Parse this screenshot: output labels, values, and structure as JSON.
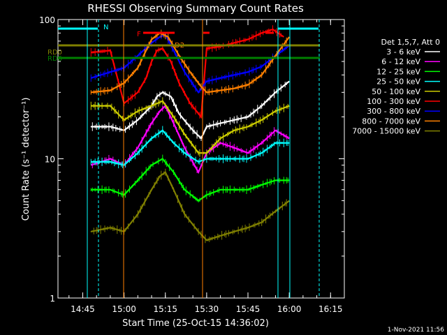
{
  "chart_data": {
    "type": "line",
    "title": "RHESSI Observing Summary Count Rates",
    "xlabel": "Start Time (25-Oct-15 14:36:02)",
    "ylabel": "Count Rate (s⁻¹ detector⁻¹)",
    "yscale": "log",
    "ylim": [
      1,
      100
    ],
    "xlim": [
      "14:36",
      "16:20"
    ],
    "x_ticks": [
      "14:45",
      "15:00",
      "15:15",
      "15:30",
      "15:45",
      "16:00",
      "16:15"
    ],
    "y_ticks": [
      "1",
      "10",
      "100"
    ],
    "legend_title": "Det 1,5,7, Att 0",
    "legend_position": "right",
    "footer_date": "1-Nov-2021 11:56",
    "flags": [
      {
        "label": "N",
        "color": "#00ffff"
      },
      {
        "label": "F",
        "color": "#ff0000"
      },
      {
        "label": "D2",
        "color": "#ff7f00"
      },
      {
        "label": "RD0",
        "color": "#808000"
      },
      {
        "label": "RD6",
        "color": "#008000"
      }
    ],
    "series": [
      {
        "name": "3 - 6 keV",
        "color": "#ffffff",
        "points": [
          [
            "14:48",
            17
          ],
          [
            "14:55",
            17
          ],
          [
            "15:00",
            16
          ],
          [
            "15:05",
            19
          ],
          [
            "15:10",
            24
          ],
          [
            "15:12",
            28
          ],
          [
            "15:14",
            30
          ],
          [
            "15:17",
            28
          ],
          [
            "15:20",
            21
          ],
          [
            "15:25",
            16
          ],
          [
            "15:28",
            14
          ],
          [
            "15:30",
            17
          ],
          [
            "15:35",
            18
          ],
          [
            "15:40",
            19
          ],
          [
            "15:45",
            20
          ],
          [
            "15:50",
            24
          ],
          [
            "15:55",
            30
          ],
          [
            "16:00",
            36
          ]
        ]
      },
      {
        "name": "6 - 12 keV",
        "color": "#ff00ff",
        "points": [
          [
            "14:48",
            9
          ],
          [
            "14:55",
            10
          ],
          [
            "15:00",
            9
          ],
          [
            "15:05",
            12
          ],
          [
            "15:10",
            18
          ],
          [
            "15:13",
            22
          ],
          [
            "15:15",
            24
          ],
          [
            "15:18",
            18
          ],
          [
            "15:22",
            12
          ],
          [
            "15:27",
            8
          ],
          [
            "15:30",
            11
          ],
          [
            "15:35",
            13
          ],
          [
            "15:40",
            12
          ],
          [
            "15:45",
            11
          ],
          [
            "15:50",
            13
          ],
          [
            "15:55",
            16
          ],
          [
            "16:00",
            14
          ]
        ]
      },
      {
        "name": "12 - 25 keV",
        "color": "#00ff00",
        "points": [
          [
            "14:48",
            6
          ],
          [
            "14:55",
            6
          ],
          [
            "15:00",
            5.5
          ],
          [
            "15:05",
            7
          ],
          [
            "15:10",
            9
          ],
          [
            "15:14",
            10
          ],
          [
            "15:18",
            8
          ],
          [
            "15:22",
            6
          ],
          [
            "15:27",
            5
          ],
          [
            "15:30",
            5.5
          ],
          [
            "15:35",
            6
          ],
          [
            "15:40",
            6
          ],
          [
            "15:45",
            6
          ],
          [
            "15:50",
            6.5
          ],
          [
            "15:55",
            7
          ],
          [
            "16:00",
            7
          ]
        ]
      },
      {
        "name": "25 - 50 keV",
        "color": "#00ffff",
        "points": [
          [
            "14:48",
            9.5
          ],
          [
            "14:55",
            9.5
          ],
          [
            "15:00",
            9
          ],
          [
            "15:05",
            11
          ],
          [
            "15:10",
            14
          ],
          [
            "15:14",
            16
          ],
          [
            "15:18",
            13
          ],
          [
            "15:22",
            11
          ],
          [
            "15:27",
            9.5
          ],
          [
            "15:30",
            10
          ],
          [
            "15:35",
            10
          ],
          [
            "15:40",
            10
          ],
          [
            "15:45",
            10
          ],
          [
            "15:50",
            11
          ],
          [
            "15:55",
            13
          ],
          [
            "16:00",
            13
          ]
        ]
      },
      {
        "name": "50 - 100 keV",
        "color": "#cccc00",
        "points": [
          [
            "14:48",
            24
          ],
          [
            "14:55",
            24
          ],
          [
            "15:00",
            19
          ],
          [
            "15:05",
            22
          ],
          [
            "15:10",
            24
          ],
          [
            "15:14",
            26
          ],
          [
            "15:18",
            20
          ],
          [
            "15:22",
            15
          ],
          [
            "15:27",
            11
          ],
          [
            "15:30",
            11
          ],
          [
            "15:35",
            14
          ],
          [
            "15:40",
            16
          ],
          [
            "15:45",
            17
          ],
          [
            "15:50",
            19
          ],
          [
            "15:55",
            22
          ],
          [
            "16:00",
            24
          ]
        ]
      },
      {
        "name": "100 - 300 keV",
        "color": "#ff0000",
        "points": [
          [
            "14:48",
            58
          ],
          [
            "14:55",
            60
          ],
          [
            "15:00",
            25
          ],
          [
            "15:05",
            30
          ],
          [
            "15:08",
            38
          ],
          [
            "15:10",
            50
          ],
          [
            "15:12",
            60
          ],
          [
            "15:14",
            62
          ],
          [
            "15:17",
            50
          ],
          [
            "15:20",
            35
          ],
          [
            "15:24",
            25
          ],
          [
            "15:28",
            20
          ],
          [
            "15:30",
            62
          ],
          [
            "15:35",
            64
          ],
          [
            "15:40",
            68
          ],
          [
            "15:45",
            72
          ],
          [
            "15:50",
            80
          ],
          [
            "15:54",
            85
          ],
          [
            "15:58",
            75
          ]
        ]
      },
      {
        "name": "300 - 800 keV",
        "color": "#0000ff",
        "points": [
          [
            "14:48",
            38
          ],
          [
            "14:55",
            42
          ],
          [
            "15:00",
            45
          ],
          [
            "15:05",
            55
          ],
          [
            "15:10",
            68
          ],
          [
            "15:13",
            75
          ],
          [
            "15:15",
            78
          ],
          [
            "15:18",
            60
          ],
          [
            "15:22",
            42
          ],
          [
            "15:27",
            30
          ],
          [
            "15:30",
            36
          ],
          [
            "15:35",
            38
          ],
          [
            "15:40",
            40
          ],
          [
            "15:45",
            42
          ],
          [
            "15:50",
            46
          ],
          [
            "15:55",
            55
          ],
          [
            "16:00",
            65
          ]
        ]
      },
      {
        "name": "800 - 7000 keV",
        "color": "#ff8000",
        "points": [
          [
            "14:48",
            30
          ],
          [
            "14:55",
            31
          ],
          [
            "15:00",
            35
          ],
          [
            "15:05",
            45
          ],
          [
            "15:08",
            60
          ],
          [
            "15:10",
            72
          ],
          [
            "15:13",
            80
          ],
          [
            "15:16",
            75
          ],
          [
            "15:20",
            55
          ],
          [
            "15:24",
            42
          ],
          [
            "15:28",
            33
          ],
          [
            "15:30",
            30
          ],
          [
            "15:35",
            31
          ],
          [
            "15:40",
            32
          ],
          [
            "15:45",
            34
          ],
          [
            "15:50",
            40
          ],
          [
            "15:55",
            55
          ],
          [
            "16:00",
            75
          ]
        ]
      },
      {
        "name": "7000 - 15000 keV",
        "color": "#808000",
        "points": [
          [
            "14:48",
            3
          ],
          [
            "14:55",
            3.2
          ],
          [
            "15:00",
            3
          ],
          [
            "15:05",
            4
          ],
          [
            "15:10",
            6
          ],
          [
            "15:13",
            7.5
          ],
          [
            "15:15",
            8
          ],
          [
            "15:18",
            6
          ],
          [
            "15:22",
            4
          ],
          [
            "15:27",
            3
          ],
          [
            "15:30",
            2.6
          ],
          [
            "15:35",
            2.8
          ],
          [
            "15:40",
            3
          ],
          [
            "15:45",
            3.2
          ],
          [
            "15:50",
            3.5
          ],
          [
            "15:55",
            4.2
          ],
          [
            "16:00",
            5
          ]
        ]
      }
    ]
  }
}
